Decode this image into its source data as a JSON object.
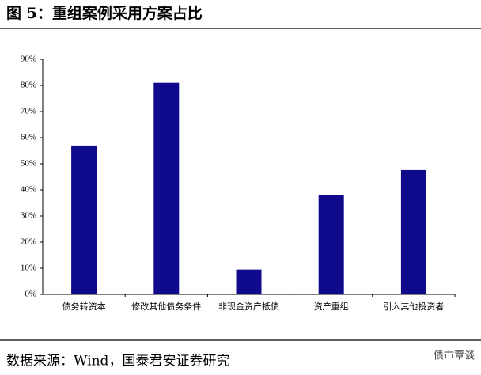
{
  "chart_data": {
    "type": "bar",
    "title": "图 5：重组案例采用方案占比",
    "categories": [
      "债务转资本",
      "修改其他债务条件",
      "非现金资产抵债",
      "资产重组",
      "引入其他投资者"
    ],
    "values": [
      57,
      81,
      9.5,
      38,
      47.6
    ],
    "color": "#0f0a8c",
    "ylim": [
      0,
      90
    ],
    "yticks": [
      {
        "value": 0,
        "label": "0%"
      },
      {
        "value": 10,
        "label": "10%"
      },
      {
        "value": 20,
        "label": "20%"
      },
      {
        "value": 30,
        "label": "30%"
      },
      {
        "value": 40,
        "label": "40%"
      },
      {
        "value": 50,
        "label": "50%"
      },
      {
        "value": 60,
        "label": "60%"
      },
      {
        "value": 70,
        "label": "70%"
      },
      {
        "value": 80,
        "label": "80%"
      },
      {
        "value": 90,
        "label": "90%"
      }
    ],
    "grid": false,
    "source": "数据来源：Wind，国泰君安证券研究",
    "watermark": "债市覃谈"
  }
}
